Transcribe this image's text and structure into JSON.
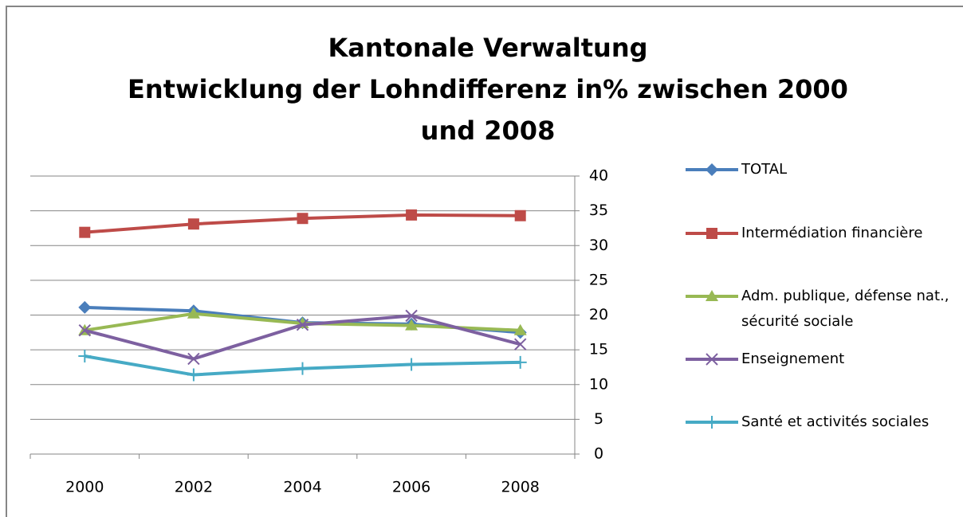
{
  "chart_data": {
    "type": "line",
    "title": [
      "Kantonale Verwaltung",
      "Entwicklung der Lohndifferenz  in% zwischen 2000",
      "und 2008"
    ],
    "categories": [
      "2000",
      "2002",
      "2004",
      "2006",
      "2008"
    ],
    "series": [
      {
        "name": "TOTAL",
        "color": "#4a7ebb",
        "marker": "diamond",
        "values": [
          21.1,
          20.6,
          18.9,
          18.7,
          17.5
        ]
      },
      {
        "name": "Intermédiation financière",
        "color": "#be4b48",
        "marker": "square",
        "values": [
          31.9,
          33.1,
          33.9,
          34.4,
          34.3
        ]
      },
      {
        "name": "Adm. publique, défense nat., sécurité sociale",
        "color": "#98b954",
        "marker": "triangle",
        "values": [
          17.8,
          20.2,
          18.8,
          18.5,
          17.8
        ]
      },
      {
        "name": "Enseignement",
        "color": "#7d60a0",
        "marker": "x",
        "values": [
          17.8,
          13.7,
          18.6,
          19.9,
          15.8
        ]
      },
      {
        "name": "Santé et activités sociales",
        "color": "#46aac5",
        "marker": "star",
        "values": [
          14.1,
          11.4,
          12.3,
          12.9,
          13.2
        ]
      }
    ],
    "ylim": [
      0,
      40
    ],
    "yticks": [
      0,
      5,
      10,
      15,
      20,
      25,
      30,
      35,
      40
    ],
    "grid": true,
    "y_axis_side": "right",
    "legend": "right"
  }
}
